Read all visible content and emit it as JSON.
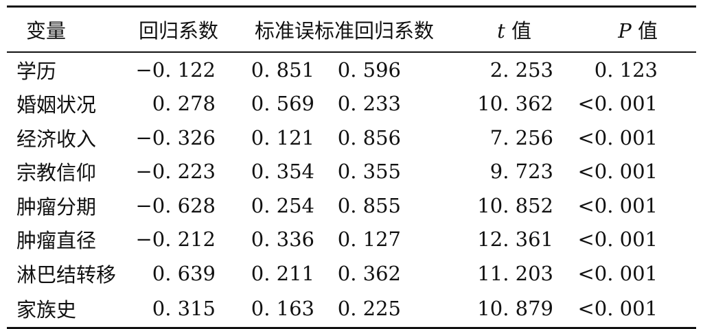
{
  "table": {
    "headers": [
      {
        "prefix": "",
        "italic": "",
        "text": "变量"
      },
      {
        "prefix": "",
        "italic": "",
        "text": "回归系数"
      },
      {
        "prefix": "",
        "italic": "",
        "text": "标准误"
      },
      {
        "prefix": "",
        "italic": "",
        "text": "标准回归系数"
      },
      {
        "prefix": "",
        "italic": "t",
        "text": " 值"
      },
      {
        "prefix": "",
        "italic": "P",
        "text": " 值"
      }
    ],
    "rows": [
      [
        "学历",
        "−0. 122",
        "0. 851",
        "0. 596",
        "2. 253",
        "0. 123"
      ],
      [
        "婚姻状况",
        "0. 278",
        "0. 569",
        "0. 233",
        "10. 362",
        "<0. 001"
      ],
      [
        "经济收入",
        "−0. 326",
        "0. 121",
        "0. 856",
        "7. 256",
        "<0. 001"
      ],
      [
        "宗教信仰",
        "−0. 223",
        "0. 354",
        "0. 355",
        "9. 723",
        "<0. 001"
      ],
      [
        "肿瘤分期",
        "−0. 628",
        "0. 254",
        "0. 855",
        "10. 852",
        "<0. 001"
      ],
      [
        "肿瘤直径",
        "−0. 212",
        "0. 336",
        "0. 127",
        "12. 361",
        "<0. 001"
      ],
      [
        "淋巴结转移",
        "0. 639",
        "0. 211",
        "0. 362",
        "11. 203",
        "<0. 001"
      ],
      [
        "家族史",
        "0. 315",
        "0. 163",
        "0. 225",
        "10. 879",
        "<0. 001"
      ]
    ]
  }
}
